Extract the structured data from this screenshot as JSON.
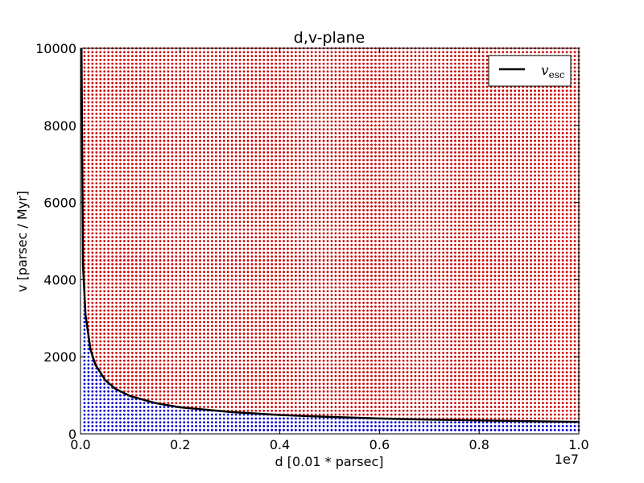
{
  "chart_data": {
    "type": "scatter",
    "title": "d,v-plane",
    "xlabel": "d [0.01 * parsec]",
    "ylabel": "v [parsec / Myr]",
    "x_offset_label": "1e7",
    "xlim": [
      0,
      10000000
    ],
    "ylim": [
      0,
      10000
    ],
    "x_ticks": [
      0,
      2000000,
      4000000,
      6000000,
      8000000,
      10000000
    ],
    "x_tick_labels": [
      "0.0",
      "0.2",
      "0.4",
      "0.6",
      "0.8",
      "1.0"
    ],
    "y_ticks": [
      0,
      2000,
      4000,
      6000,
      8000,
      10000
    ],
    "y_tick_labels": [
      "0",
      "2000",
      "4000",
      "6000",
      "8000",
      "10000"
    ],
    "grid": false,
    "legend_position": "top-right",
    "scatter_grid": {
      "x_min": 80000,
      "x_max": 10000000,
      "x_step": 80000,
      "y_min": 100,
      "y_max": 10000,
      "y_step": 100
    },
    "series": [
      {
        "name": "v_esc",
        "kind": "line",
        "color": "#000000",
        "points": [
          [
            20000,
            10000
          ],
          [
            50000,
            4380
          ],
          [
            100000,
            3100
          ],
          [
            200000,
            2190
          ],
          [
            300000,
            1790
          ],
          [
            500000,
            1390
          ],
          [
            700000,
            1170
          ],
          [
            1000000,
            980
          ],
          [
            1500000,
            800
          ],
          [
            2000000,
            690
          ],
          [
            3000000,
            570
          ],
          [
            4000000,
            490
          ],
          [
            5000000,
            440
          ],
          [
            6000000,
            400
          ],
          [
            7000000,
            370
          ],
          [
            8000000,
            350
          ],
          [
            9000000,
            330
          ],
          [
            10000000,
            310
          ]
        ]
      },
      {
        "kind": "scatter",
        "role": "escaping",
        "color": "#cc0000"
      },
      {
        "kind": "scatter",
        "role": "bound",
        "color": "#0000cc"
      }
    ],
    "legend": {
      "label": "v",
      "label_sub": "esc"
    }
  }
}
